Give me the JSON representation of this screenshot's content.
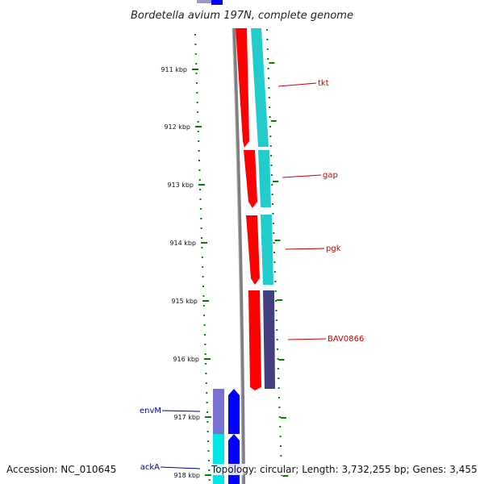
{
  "title": "Bordetella avium 197N, complete genome",
  "accession_text": "Accession: NC_010645",
  "summary_text": "Topology: circular; Length: 3,732,255 bp; Genes: 3,455",
  "ticks": [
    {
      "label": "911 kbp"
    },
    {
      "label": "912 kbp"
    },
    {
      "label": "913 kbp"
    },
    {
      "label": "914 kbp"
    },
    {
      "label": "915 kbp"
    },
    {
      "label": "916 kbp"
    },
    {
      "label": "917 kbp"
    },
    {
      "label": "918 kbp"
    }
  ],
  "forward_genes": [
    {
      "name": "tkt"
    },
    {
      "name": "gap"
    },
    {
      "name": "pgk"
    },
    {
      "name": "BAV0866"
    }
  ],
  "reverse_genes": [
    {
      "name": "envM"
    },
    {
      "name": "ackA"
    }
  ],
  "colors": {
    "forward_cds": "#ff0000",
    "reverse_cds": "#0000ff",
    "cog_cyan": "#22cccc",
    "cog_purple": "#44407f",
    "cog_lavender": "#7a72d0",
    "backbone": "#7f7f7f",
    "skew_dots": "#007f00"
  }
}
